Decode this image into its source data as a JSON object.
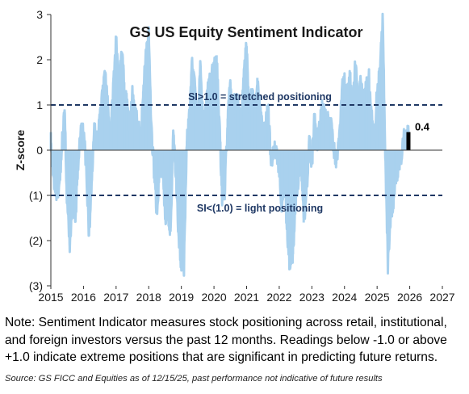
{
  "chart_data": {
    "type": "area",
    "title": "GS US Equity  Sentiment Indicator",
    "ylabel": "Z-score",
    "xlabel": "",
    "xlim": [
      2015,
      2027
    ],
    "ylim": [
      -3,
      3
    ],
    "x_ticks": [
      2015,
      2016,
      2017,
      2018,
      2019,
      2020,
      2021,
      2022,
      2023,
      2024,
      2025,
      2026,
      2027
    ],
    "x_tick_labels": [
      "2015",
      "2016",
      "2017",
      "2018",
      "2019",
      "2020",
      "2021",
      "2022",
      "2023",
      "2024",
      "2025",
      "2026",
      "2027"
    ],
    "y_ticks": [
      -3,
      -2,
      -1,
      0,
      1,
      2,
      3
    ],
    "y_tick_labels": [
      "(3)",
      "(2)",
      "(1)",
      "0",
      "1",
      "2",
      "3"
    ],
    "series_color": "#a9d1ee",
    "threshold_color": "#1f3864",
    "thresholds": [
      {
        "value": 1.0,
        "label": "SI>1.0 = stretched positioning"
      },
      {
        "value": -1.0,
        "label": "SI<(1.0) = light positioning"
      }
    ],
    "latest": {
      "x": 2025.96,
      "from": 0.0,
      "value": 0.4,
      "label": "0.4",
      "color": "#000000"
    },
    "x": [
      2015.0,
      2015.08,
      2015.17,
      2015.25,
      2015.33,
      2015.42,
      2015.5,
      2015.58,
      2015.67,
      2015.75,
      2015.83,
      2015.92,
      2016.0,
      2016.08,
      2016.17,
      2016.25,
      2016.33,
      2016.42,
      2016.5,
      2016.58,
      2016.67,
      2016.75,
      2016.83,
      2016.92,
      2017.0,
      2017.08,
      2017.17,
      2017.25,
      2017.33,
      2017.42,
      2017.5,
      2017.58,
      2017.67,
      2017.75,
      2017.83,
      2017.92,
      2018.0,
      2018.08,
      2018.17,
      2018.25,
      2018.33,
      2018.42,
      2018.5,
      2018.58,
      2018.67,
      2018.75,
      2018.83,
      2018.92,
      2019.0,
      2019.08,
      2019.17,
      2019.25,
      2019.33,
      2019.42,
      2019.5,
      2019.58,
      2019.67,
      2019.75,
      2019.83,
      2019.92,
      2020.0,
      2020.08,
      2020.17,
      2020.25,
      2020.33,
      2020.42,
      2020.5,
      2020.58,
      2020.67,
      2020.75,
      2020.83,
      2020.92,
      2021.0,
      2021.08,
      2021.17,
      2021.25,
      2021.33,
      2021.42,
      2021.5,
      2021.58,
      2021.67,
      2021.75,
      2021.83,
      2021.92,
      2022.0,
      2022.08,
      2022.17,
      2022.25,
      2022.33,
      2022.42,
      2022.5,
      2022.58,
      2022.67,
      2022.75,
      2022.83,
      2022.92,
      2023.0,
      2023.08,
      2023.17,
      2023.25,
      2023.33,
      2023.42,
      2023.5,
      2023.58,
      2023.67,
      2023.75,
      2023.83,
      2023.92,
      2024.0,
      2024.08,
      2024.17,
      2024.25,
      2024.33,
      2024.42,
      2024.5,
      2024.58,
      2024.67,
      2024.75,
      2024.83,
      2024.92,
      2025.0,
      2025.08,
      2025.17,
      2025.25,
      2025.33,
      2025.42,
      2025.5,
      2025.58,
      2025.67,
      2025.75,
      2025.83,
      2025.92,
      2025.96
    ],
    "values": [
      0.4,
      -0.6,
      -0.9,
      -0.8,
      0.0,
      0.9,
      -1.2,
      -2.1,
      -1.0,
      -1.6,
      -0.3,
      0.4,
      0.4,
      -0.3,
      -1.9,
      -0.7,
      0.4,
      0.3,
      0.6,
      1.3,
      1.6,
      0.9,
      0.2,
      1.6,
      2.4,
      1.5,
      2.1,
      1.5,
      1.0,
      0.4,
      1.2,
      0.9,
      0.5,
      0.3,
      1.3,
      2.2,
      2.5,
      0.4,
      -0.5,
      -1.4,
      -0.5,
      -0.3,
      -1.5,
      -1.3,
      -1.8,
      0.3,
      -0.5,
      -1.9,
      -2.5,
      -2.6,
      0.2,
      0.8,
      1.9,
      1.4,
      0.5,
      1.8,
      0.6,
      1.0,
      1.5,
      1.6,
      1.8,
      2.1,
      0.5,
      -1.0,
      -0.9,
      0.7,
      1.5,
      0.8,
      1.2,
      0.9,
      0.6,
      1.8,
      2.3,
      0.9,
      1.3,
      0.8,
      1.6,
      0.9,
      0.3,
      0.6,
      0.9,
      -0.3,
      0.1,
      0.0,
      -0.4,
      -1.3,
      -0.8,
      -1.9,
      -2.6,
      -2.3,
      -1.1,
      -0.7,
      -0.2,
      -1.6,
      -1.0,
      0.2,
      -0.3,
      0.7,
      0.2,
      0.6,
      1.0,
      0.7,
      0.8,
      0.6,
      0.0,
      -0.3,
      0.2,
      1.3,
      1.6,
      1.2,
      1.6,
      0.8,
      1.9,
      1.1,
      1.5,
      1.0,
      1.4,
      1.6,
      0.8,
      0.2,
      1.3,
      1.7,
      2.8,
      0.0,
      -2.5,
      -1.4,
      -1.2,
      -0.6,
      -0.3,
      -0.1,
      0.3,
      0.3,
      0.4
    ]
  },
  "note": "Note: Sentiment Indicator measures stock positioning across retail, institutional, and foreign investors versus the past 12 months. Readings below -1.0 or above +1.0 indicate extreme positions that are significant in predicting future returns.",
  "source": "Source: GS FICC and Equities as of 12/15/25, past performance not indicative of future results"
}
